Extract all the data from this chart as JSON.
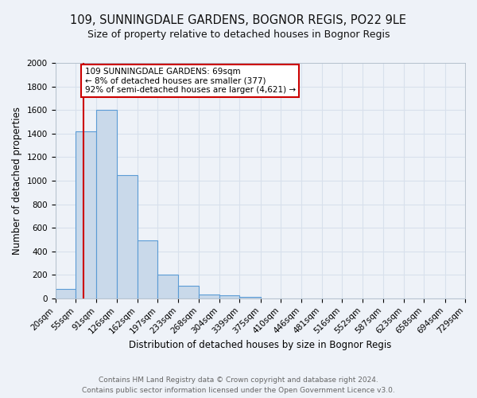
{
  "title": "109, SUNNINGDALE GARDENS, BOGNOR REGIS, PO22 9LE",
  "subtitle": "Size of property relative to detached houses in Bognor Regis",
  "xlabel": "Distribution of detached houses by size in Bognor Regis",
  "ylabel": "Number of detached properties",
  "bin_edges": [
    20,
    55,
    91,
    126,
    162,
    197,
    233,
    268,
    304,
    339,
    375,
    410,
    446,
    481,
    516,
    552,
    587,
    623,
    658,
    694,
    729
  ],
  "bin_counts": [
    80,
    1420,
    1600,
    1050,
    490,
    200,
    105,
    30,
    25,
    15,
    0,
    0,
    0,
    0,
    0,
    0,
    0,
    0,
    0,
    0
  ],
  "bar_color": "#c9d9ea",
  "bar_edge_color": "#5b9bd5",
  "vline_x": 69,
  "vline_color": "#cc0000",
  "annotation_text": "109 SUNNINGDALE GARDENS: 69sqm\n← 8% of detached houses are smaller (377)\n92% of semi-detached houses are larger (4,621) →",
  "annotation_box_edge_color": "#cc0000",
  "annotation_box_face_color": "#ffffff",
  "ylim": [
    0,
    2000
  ],
  "yticks": [
    0,
    200,
    400,
    600,
    800,
    1000,
    1200,
    1400,
    1600,
    1800,
    2000
  ],
  "tick_labels": [
    "20sqm",
    "55sqm",
    "91sqm",
    "126sqm",
    "162sqm",
    "197sqm",
    "233sqm",
    "268sqm",
    "304sqm",
    "339sqm",
    "375sqm",
    "410sqm",
    "446sqm",
    "481sqm",
    "516sqm",
    "552sqm",
    "587sqm",
    "623sqm",
    "658sqm",
    "694sqm",
    "729sqm"
  ],
  "footer1": "Contains HM Land Registry data © Crown copyright and database right 2024.",
  "footer2": "Contains public sector information licensed under the Open Government Licence v3.0.",
  "background_color": "#eef2f8",
  "grid_color": "#d8e0ec",
  "title_fontsize": 10.5,
  "subtitle_fontsize": 9,
  "label_fontsize": 8.5,
  "tick_fontsize": 7.5,
  "footer_fontsize": 6.5,
  "annot_fontsize": 7.5
}
